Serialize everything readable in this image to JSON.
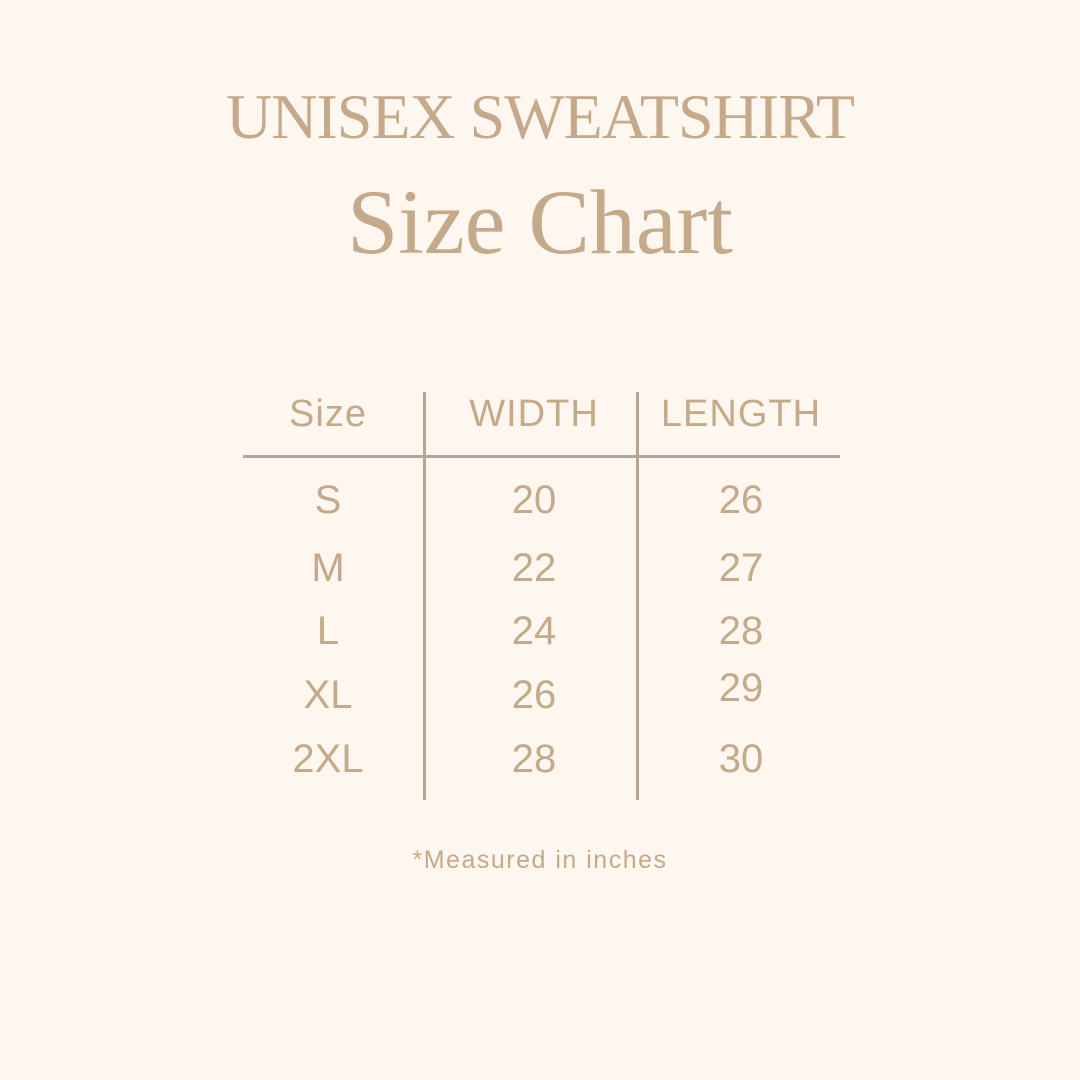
{
  "header": {
    "title": "UNISEX SWEATSHIRT",
    "subtitle": "Size Chart"
  },
  "colors": {
    "background": "#fdf7ef",
    "text": "#c4a98a",
    "lines": "#b9a692"
  },
  "chart_data": {
    "type": "table",
    "columns": [
      "Size",
      "WIDTH",
      "LENGTH"
    ],
    "rows": [
      [
        "S",
        "20",
        "26"
      ],
      [
        "M",
        "22",
        "27"
      ],
      [
        "L",
        "24",
        "28"
      ],
      [
        "XL",
        "26",
        "29"
      ],
      [
        "2XL",
        "28",
        "30"
      ]
    ]
  },
  "footer": {
    "note": "*Measured in inches"
  }
}
